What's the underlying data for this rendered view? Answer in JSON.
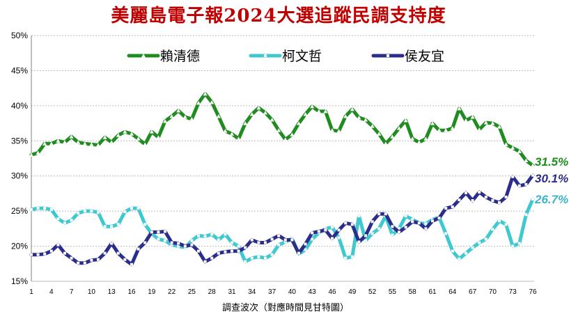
{
  "title": "美麗島電子報2024大選追蹤民調支持度",
  "chart_data": {
    "type": "line",
    "title": "美麗島電子報2024大選追蹤民調支持度",
    "xlabel": "調查波次（對應時間見甘特圖）",
    "ylabel": "",
    "ylim": [
      15,
      50
    ],
    "yticks": [
      "15%",
      "20%",
      "25%",
      "30%",
      "35%",
      "40%",
      "45%",
      "50%"
    ],
    "x": [
      1,
      2,
      3,
      4,
      5,
      6,
      7,
      8,
      9,
      10,
      11,
      12,
      13,
      14,
      15,
      16,
      17,
      18,
      19,
      20,
      21,
      22,
      23,
      24,
      25,
      26,
      27,
      28,
      29,
      30,
      31,
      32,
      33,
      34,
      35,
      36,
      37,
      38,
      39,
      40,
      41,
      42,
      43,
      44,
      45,
      46,
      47,
      48,
      49,
      50,
      51,
      52,
      53,
      54,
      55,
      56,
      57,
      58,
      59,
      60,
      61,
      62,
      63,
      64,
      65,
      66,
      67,
      68,
      69,
      70,
      71,
      72,
      73,
      74,
      75,
      76
    ],
    "xtick_labels": [
      "1",
      "4",
      "7",
      "10",
      "13",
      "16",
      "19",
      "22",
      "25",
      "28",
      "31",
      "34",
      "37",
      "40",
      "43",
      "46",
      "49",
      "52",
      "55",
      "58",
      "61",
      "64",
      "67",
      "70",
      "73",
      "76"
    ],
    "grid": true,
    "legend_position": "top",
    "series": [
      {
        "name": "賴清德",
        "color": "#1e8c1e",
        "marker": "triangle",
        "end_label": "31.5%",
        "values": [
          33.0,
          33.3,
          34.6,
          34.6,
          35.0,
          34.8,
          35.6,
          34.8,
          34.6,
          34.5,
          34.4,
          35.5,
          34.8,
          35.8,
          36.3,
          36.0,
          35.3,
          34.5,
          36.3,
          35.5,
          37.8,
          38.5,
          39.3,
          38.4,
          38.1,
          40.4,
          41.7,
          40.5,
          38.5,
          36.4,
          36.0,
          35.3,
          37.5,
          38.8,
          39.7,
          39.0,
          38.0,
          36.5,
          35.2,
          35.9,
          37.5,
          38.8,
          39.9,
          39.2,
          39.2,
          36.5,
          36.4,
          38.5,
          39.5,
          38.3,
          38.0,
          37.1,
          36.0,
          34.6,
          35.6,
          36.8,
          37.9,
          35.3,
          34.8,
          35.3,
          37.5,
          36.5,
          36.5,
          36.8,
          39.6,
          37.9,
          38.4,
          36.6,
          37.6,
          37.5,
          37.0,
          34.5,
          34.0,
          33.5,
          32.2,
          31.5
        ]
      },
      {
        "name": "柯文哲",
        "color": "#3ec8d0",
        "marker": "square",
        "end_label": "26.7%",
        "values": [
          25.2,
          25.4,
          25.4,
          25.2,
          23.9,
          23.3,
          23.7,
          24.7,
          25.0,
          25.0,
          24.8,
          22.8,
          22.8,
          23.1,
          24.9,
          25.4,
          25.4,
          23.1,
          21.8,
          21.0,
          20.8,
          20.2,
          20.0,
          19.8,
          20.8,
          21.5,
          21.4,
          21.7,
          20.9,
          21.7,
          20.5,
          20.0,
          17.8,
          18.3,
          18.5,
          18.3,
          18.8,
          20.2,
          20.6,
          21.1,
          18.9,
          19.5,
          21.0,
          21.9,
          22.5,
          22.7,
          21.2,
          18.3,
          18.5,
          24.3,
          20.8,
          21.8,
          22.5,
          24.3,
          21.6,
          22.5,
          24.3,
          23.8,
          23.3,
          23.2,
          23.8,
          24.1,
          21.8,
          19.3,
          18.2,
          19.0,
          19.8,
          20.5,
          21.0,
          22.4,
          23.6,
          23.1,
          20.0,
          20.4,
          24.5,
          26.7
        ]
      },
      {
        "name": "侯友宜",
        "color": "#2b2d8c",
        "marker": "square",
        "end_label": "30.1%",
        "values": [
          18.8,
          18.8,
          18.9,
          19.3,
          20.2,
          19.0,
          18.3,
          17.6,
          17.6,
          18.0,
          18.1,
          19.0,
          20.4,
          19.0,
          18.1,
          17.4,
          19.6,
          20.5,
          22.0,
          22.0,
          22.1,
          20.5,
          20.4,
          20.0,
          20.2,
          19.3,
          17.8,
          18.3,
          19.0,
          19.2,
          19.3,
          19.3,
          19.8,
          20.9,
          20.5,
          20.5,
          21.0,
          21.5,
          20.9,
          20.9,
          19.0,
          20.3,
          21.9,
          22.1,
          22.3,
          21.1,
          22.3,
          23.3,
          23.1,
          20.6,
          21.5,
          23.5,
          24.6,
          24.6,
          22.8,
          22.0,
          22.7,
          23.5,
          23.3,
          22.5,
          23.6,
          24.0,
          25.4,
          25.6,
          26.6,
          27.6,
          26.5,
          27.7,
          27.0,
          26.5,
          26.2,
          27.0,
          29.9,
          28.6,
          28.8,
          30.1
        ]
      }
    ]
  }
}
